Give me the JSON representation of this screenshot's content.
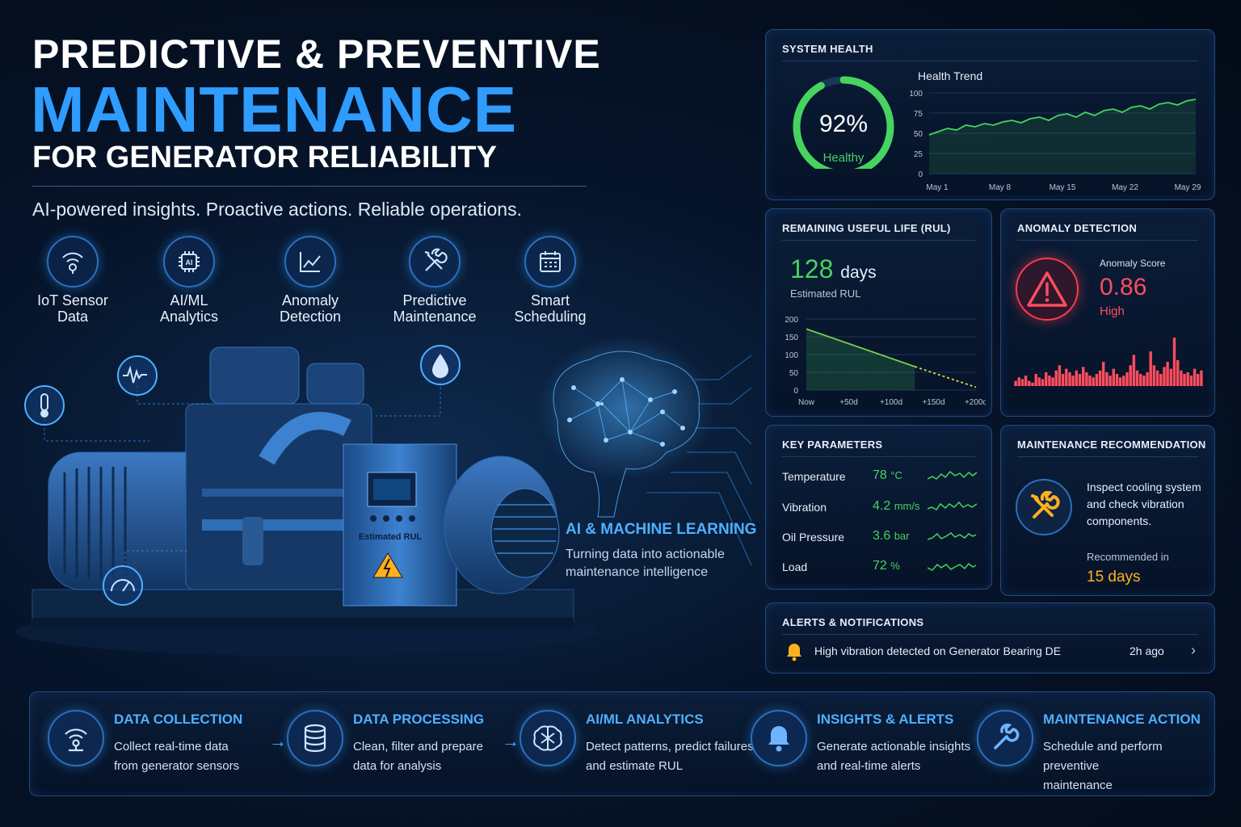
{
  "hero": {
    "line1": "PREDICTIVE & PREVENTIVE",
    "line2": "MAINTENANCE",
    "line3": "FOR GENERATOR RELIABILITY",
    "tagline": "AI-powered insights. Proactive actions. Reliable operations."
  },
  "features": [
    {
      "label1": "IoT Sensor",
      "label2": "Data",
      "icon": "wifi-sensor-icon"
    },
    {
      "label1": "AI/ML",
      "label2": "Analytics",
      "icon": "ai-chip-icon"
    },
    {
      "label1": "Anomaly",
      "label2": "Detection",
      "icon": "chart-trend-icon"
    },
    {
      "label1": "Predictive",
      "label2": "Maintenance",
      "icon": "tools-icon"
    },
    {
      "label1": "Smart",
      "label2": "Scheduling",
      "icon": "calendar-icon"
    }
  ],
  "scene": {
    "generator_label": "Estimated RUL",
    "ai_title": "AI & MACHINE LEARNING",
    "ai_sub1": "Turning data into actionable",
    "ai_sub2": "maintenance intelligence"
  },
  "system_health": {
    "title": "SYSTEM HEALTH",
    "gauge_value": "92%",
    "gauge_fraction": 0.92,
    "gauge_status": "Healthy",
    "trend_title": "Health Trend"
  },
  "rul": {
    "title": "REMAINING USEFUL LIFE (RUL)",
    "value": "128",
    "unit": "days",
    "caption": "Estimated RUL"
  },
  "anomaly": {
    "title": "ANOMALY DETECTION",
    "score_label": "Anomaly Score",
    "score": "0.86",
    "level": "High"
  },
  "key_parameters": {
    "title": "KEY PARAMETERS",
    "rows": [
      {
        "name": "Temperature",
        "value": "78",
        "unit": "°C"
      },
      {
        "name": "Vibration",
        "value": "4.2",
        "unit": "mm/s"
      },
      {
        "name": "Oil Pressure",
        "value": "3.6",
        "unit": "bar"
      },
      {
        "name": "Load",
        "value": "72",
        "unit": "%"
      }
    ]
  },
  "recommendation": {
    "title": "MAINTENANCE RECOMMENDATION",
    "line1": "Inspect cooling system",
    "line2": "and check vibration",
    "line3": "components.",
    "when_label": "Recommended in",
    "when_value": "15 days"
  },
  "alerts": {
    "title": "ALERTS & NOTIFICATIONS",
    "message": "High vibration detected on Generator Bearing DE",
    "time": "2h ago"
  },
  "flow": [
    {
      "title": "DATA COLLECTION",
      "d1": "Collect real-time data",
      "d2": "from generator sensors"
    },
    {
      "title": "DATA PROCESSING",
      "d1": "Clean, filter and prepare",
      "d2": "data for analysis"
    },
    {
      "title": "AI/ML ANALYTICS",
      "d1": "Detect patterns, predict failures",
      "d2": "and estimate RUL"
    },
    {
      "title": "INSIGHTS & ALERTS",
      "d1": "Generate actionable insights",
      "d2": "and real-time alerts"
    },
    {
      "title": "MAINTENANCE ACTION",
      "d1": "Schedule and perform preventive",
      "d2": "maintenance"
    }
  ],
  "colors": {
    "accent_blue": "#2f9cff",
    "healthy_green": "#47d35f",
    "alert_red": "#ff4d5e",
    "warning_amber": "#ffb020"
  },
  "chart_data": [
    {
      "type": "line",
      "x_ticks": [
        "May 1",
        "May 8",
        "May 15",
        "May 22",
        "May 29"
      ],
      "y_ticks": [
        "0",
        "25",
        "50",
        "75",
        "100"
      ],
      "ylim": [
        0,
        100
      ],
      "title": "Health Trend",
      "series": [
        {
          "values": [
            48,
            52,
            56,
            54,
            60,
            58,
            62,
            60,
            64,
            66,
            63,
            68,
            70,
            66,
            72,
            74,
            70,
            76,
            72,
            78,
            80,
            76,
            82,
            84,
            80,
            86,
            88,
            85,
            90,
            92
          ]
        }
      ]
    },
    {
      "type": "line",
      "x_ticks": [
        "Now",
        "+50d",
        "+100d",
        "+150d",
        "+200d"
      ],
      "y_ticks": [
        "0",
        "50",
        "100",
        "150",
        "200"
      ],
      "ylim": [
        0,
        200
      ],
      "xlim": [
        0,
        200
      ],
      "series": [
        {
          "x": [
            0,
            128
          ],
          "values": [
            172,
            66
          ]
        },
        {
          "x": [
            128,
            200
          ],
          "values": [
            66,
            8
          ]
        }
      ]
    },
    {
      "type": "bar",
      "values": [
        3,
        5,
        4,
        6,
        3,
        2,
        7,
        5,
        4,
        8,
        6,
        5,
        9,
        12,
        7,
        10,
        8,
        6,
        9,
        7,
        11,
        8,
        6,
        5,
        7,
        9,
        14,
        8,
        6,
        10,
        7,
        5,
        6,
        8,
        12,
        18,
        9,
        7,
        6,
        8,
        20,
        12,
        9,
        7,
        11,
        14,
        10,
        28,
        15,
        9,
        7,
        8,
        6,
        10,
        7,
        9
      ]
    }
  ]
}
